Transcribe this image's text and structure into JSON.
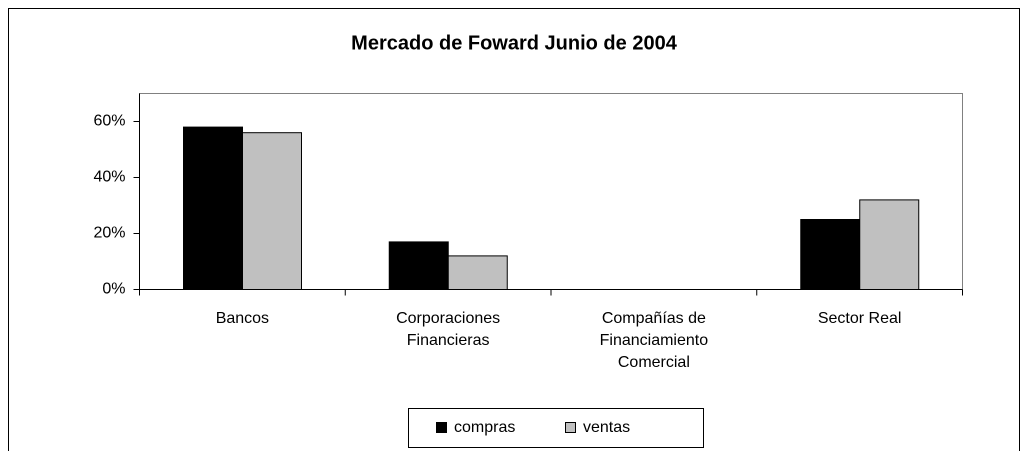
{
  "chart_data": {
    "type": "bar",
    "title": "Mercado de Foward Junio de 2004",
    "categories": [
      "Bancos",
      "Corporaciones Financieras",
      "Compañías de Financiamiento Comercial",
      "Sector Real"
    ],
    "series": [
      {
        "name": "compras",
        "color": "#000000",
        "values": [
          58,
          17,
          0,
          25
        ]
      },
      {
        "name": "ventas",
        "color": "#c0c0c0",
        "values": [
          56,
          12,
          0,
          32
        ]
      }
    ],
    "ylim": [
      0,
      70
    ],
    "yticks": [
      {
        "value": 0,
        "label": "0%"
      },
      {
        "value": 20,
        "label": "20%"
      },
      {
        "value": 40,
        "label": "40%"
      },
      {
        "value": 60,
        "label": "60%"
      }
    ],
    "legend": "bottom"
  }
}
